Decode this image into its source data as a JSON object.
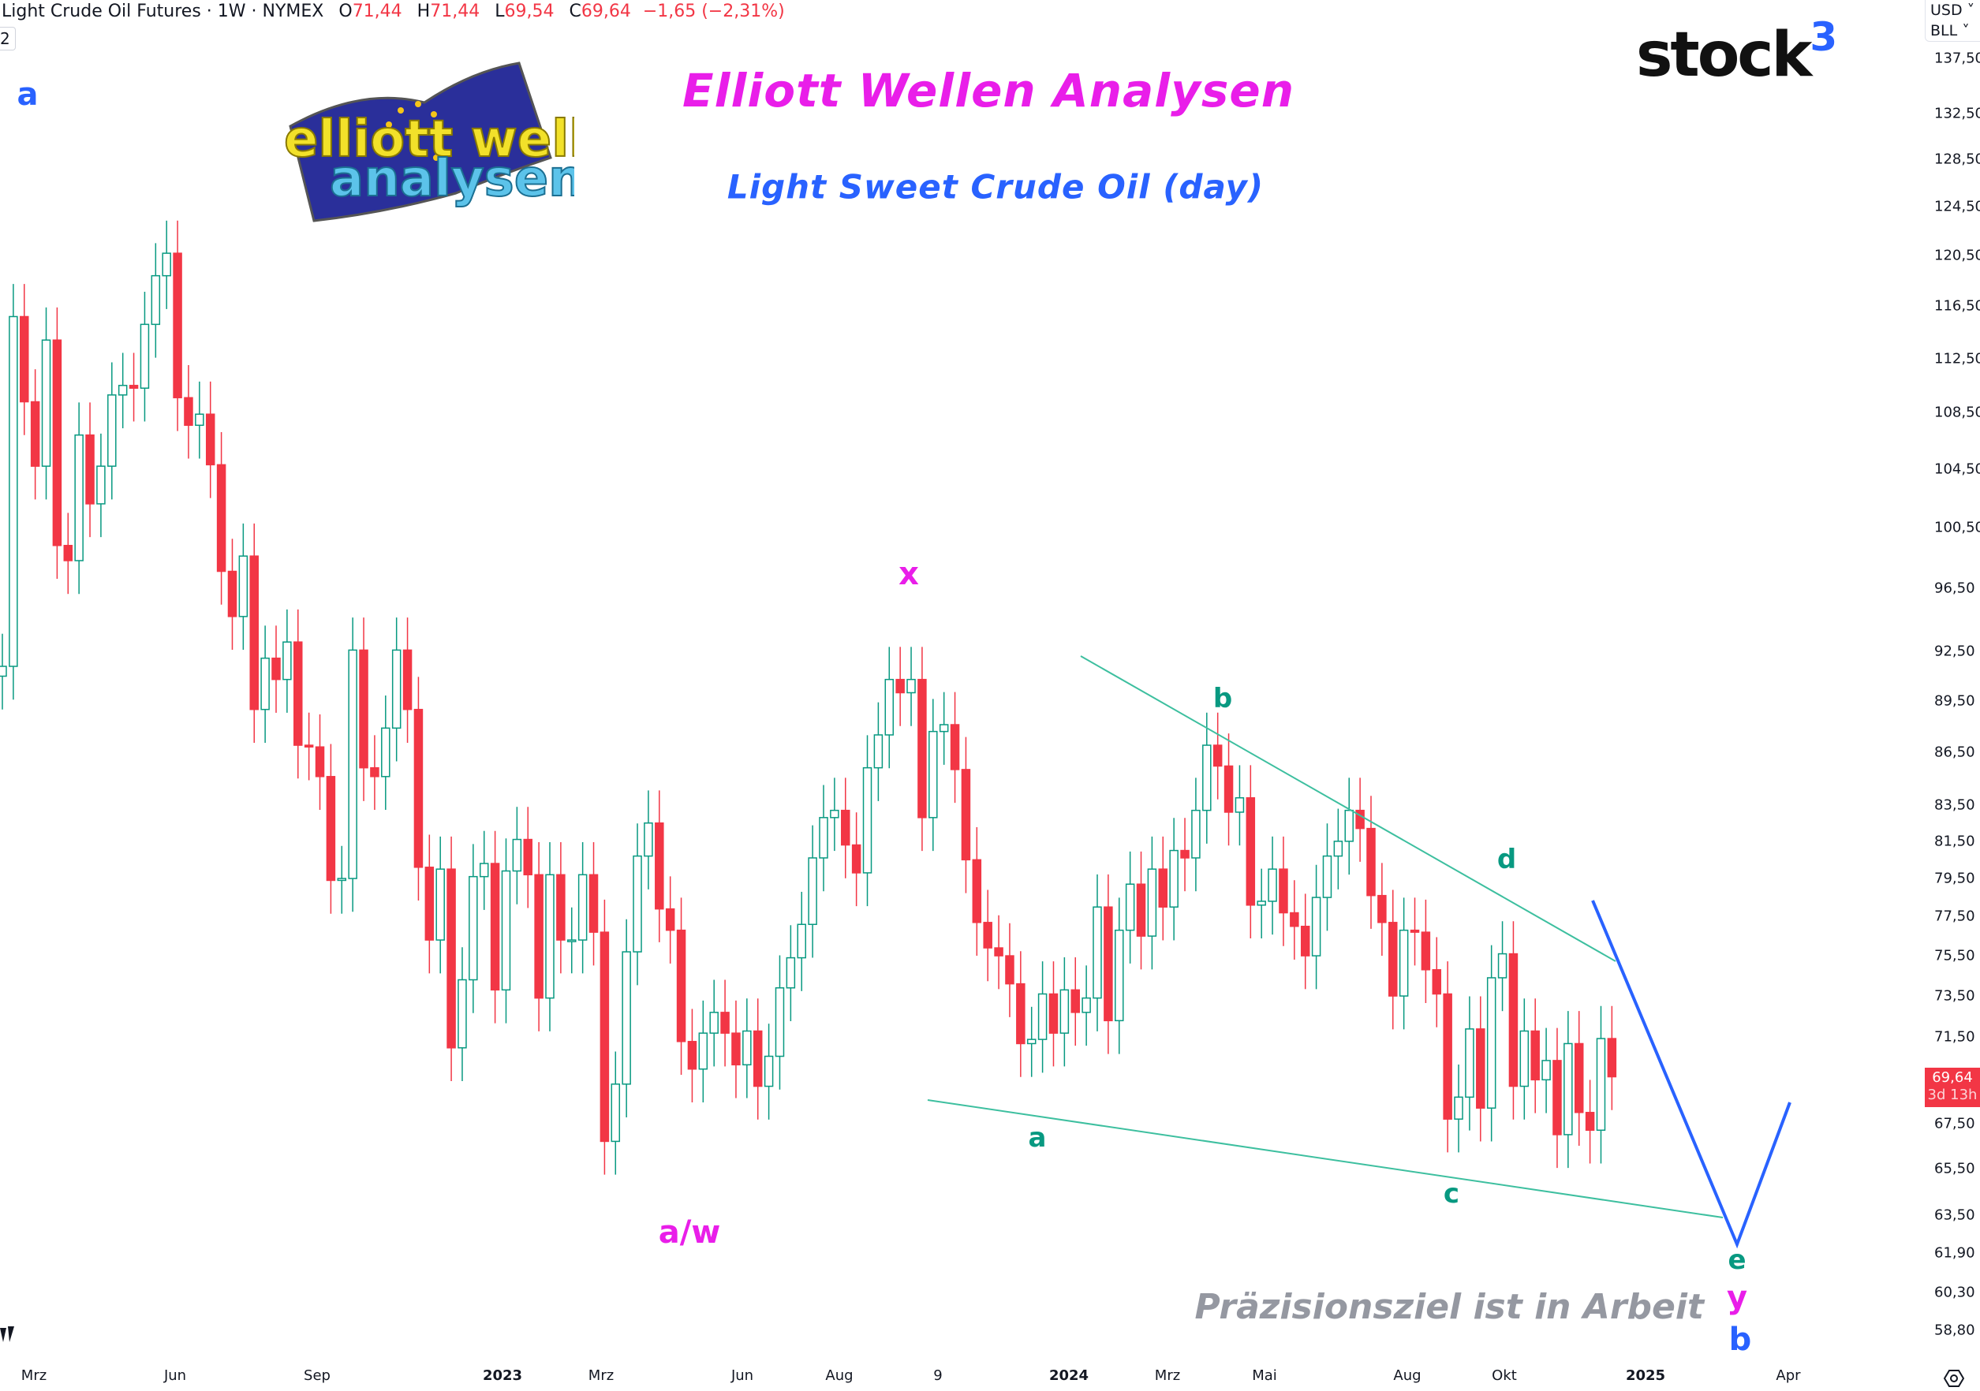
{
  "header": {
    "symbol_title": "Light Crude Oil Futures · 1W · NYMEX",
    "open_label": "O",
    "open": "71,44",
    "high_label": "H",
    "high": "71,44",
    "low_label": "L",
    "low": "69,54",
    "close_label": "C",
    "close": "69,64",
    "change": "−1,65 (−2,31%)",
    "interval_box": "2"
  },
  "branding": {
    "stock3_text": "stock",
    "stock3_sup": "3",
    "ew_logo_text": "elliott wellen analysen"
  },
  "titles": {
    "main": "Elliott Wellen Analysen",
    "subtitle": "Light Sweet Crude Oil (day)",
    "note": "Präzisionsziel ist in Arbeit"
  },
  "annotations": {
    "a_blue": "a",
    "x": "x",
    "a_w": "a/w",
    "b_teal": "b",
    "a_teal": "a",
    "c_teal": "c",
    "d_teal": "d",
    "e_teal": "e",
    "y": "y",
    "b_blue": "b"
  },
  "price_axis": {
    "currency": "USD",
    "unit": "BLL",
    "labels": [
      "137,50",
      "132,50",
      "128,50",
      "124,50",
      "120,50",
      "116,50",
      "112,50",
      "108,50",
      "104,50",
      "100,50",
      "96,50",
      "92,50",
      "89,50",
      "86,50",
      "83,50",
      "81,50",
      "79,50",
      "77,50",
      "75,50",
      "73,50",
      "71,50",
      "67,50",
      "65,50",
      "63,50",
      "61,90",
      "60,30",
      "58,80"
    ],
    "last_price": "69,64",
    "countdown": "3d 13h"
  },
  "time_axis": {
    "labels": [
      "Mrz",
      "Jun",
      "Sep",
      "2023",
      "Mrz",
      "Jun",
      "Aug",
      "9",
      "2024",
      "Mrz",
      "Mai",
      "Aug",
      "Okt",
      "2025",
      "Apr"
    ]
  },
  "colors": {
    "up": "#089981",
    "down": "#f23645",
    "trendline": "#3dbf9f",
    "projection": "#2962ff",
    "magenta": "#e91ee9"
  },
  "chart_data": {
    "type": "candlestick",
    "interval": "1W",
    "scale": "log",
    "ylim": [
      57,
      140
    ],
    "wick_pct": 2.2,
    "first_open": 91.0,
    "closes": [
      91.6,
      115.7,
      109.3,
      104.7,
      113.9,
      99.3,
      98.3,
      106.9,
      102.1,
      104.7,
      109.8,
      110.5,
      110.3,
      115.1,
      118.9,
      120.7,
      109.6,
      107.6,
      108.4,
      104.8,
      97.6,
      94.7,
      98.6,
      89.0,
      92.1,
      90.8,
      93.1,
      86.9,
      86.8,
      85.1,
      79.4,
      79.5,
      92.6,
      85.6,
      85.1,
      87.9,
      92.6,
      89.0,
      80.1,
      76.3,
      80.0,
      71.0,
      74.3,
      79.6,
      80.3,
      73.8,
      79.9,
      81.6,
      79.7,
      73.4,
      79.7,
      76.3,
      76.3,
      79.7,
      76.7,
      66.7,
      69.3,
      75.7,
      80.7,
      82.5,
      77.9,
      76.8,
      71.3,
      70.0,
      71.7,
      72.7,
      71.7,
      70.2,
      71.8,
      69.2,
      70.6,
      73.9,
      75.4,
      77.1,
      80.6,
      82.8,
      83.2,
      81.3,
      79.8,
      85.6,
      87.5,
      90.8,
      90.0,
      90.8,
      82.8,
      87.7,
      88.1,
      85.5,
      80.5,
      77.2,
      75.9,
      75.5,
      74.1,
      71.2,
      71.4,
      73.6,
      71.7,
      73.8,
      72.7,
      73.4,
      78.0,
      72.3,
      76.8,
      79.2,
      76.5,
      80.0,
      78.0,
      81.0,
      80.6,
      83.2,
      86.9,
      85.7,
      83.1,
      83.9,
      78.1,
      78.3,
      80.0,
      77.7,
      77.0,
      75.5,
      78.5,
      80.7,
      81.5,
      83.2,
      82.2,
      78.6,
      77.2,
      73.5,
      76.8,
      76.7,
      74.8,
      73.6,
      67.7,
      68.7,
      71.9,
      68.2,
      74.4,
      75.6,
      69.2,
      71.8,
      69.5,
      70.4,
      67.0,
      71.2,
      68.0,
      67.2,
      71.44,
      69.64
    ]
  }
}
